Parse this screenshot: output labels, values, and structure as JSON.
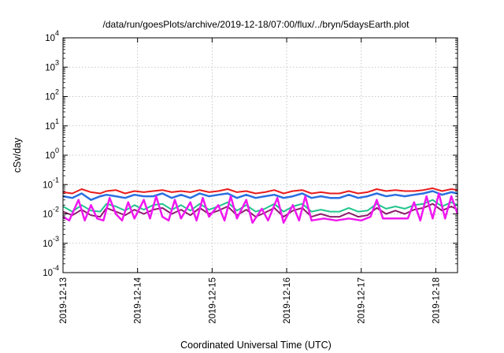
{
  "chart_data": {
    "type": "line",
    "title": "/data/run/goesPlots/archive/2019-12-18/07:00/flux/../bryn/5daysEarth.plot",
    "xlabel": "Coordinated Universal Time (UTC)",
    "ylabel": "cSv/day",
    "y_scale": "log",
    "ylim": [
      0.0001,
      10000
    ],
    "xlim": [
      "2019-12-13T00:00",
      "2019-12-18T07:00"
    ],
    "grid": true,
    "legend": "none",
    "x_tick_labels": [
      "2019-12-13",
      "2019-12-14",
      "2019-12-15",
      "2019-12-16",
      "2019-12-17",
      "2019-12-18"
    ],
    "y_ticks": [
      {
        "base": "10",
        "exp": "-4"
      },
      {
        "base": "10",
        "exp": "-3"
      },
      {
        "base": "10",
        "exp": "-2"
      },
      {
        "base": "10",
        "exp": "-1"
      },
      {
        "base": "10",
        "exp": "0"
      },
      {
        "base": "10",
        "exp": "1"
      },
      {
        "base": "10",
        "exp": "2"
      },
      {
        "base": "10",
        "exp": "3"
      },
      {
        "base": "10",
        "exp": "4"
      }
    ],
    "series": [
      {
        "color": "#e81c1c",
        "width": 2,
        "points": [
          [
            "2019-12-13T00:00",
            0.055
          ],
          [
            "2019-12-13T03:00",
            0.05
          ],
          [
            "2019-12-13T06:00",
            0.07
          ],
          [
            "2019-12-13T09:00",
            0.055
          ],
          [
            "2019-12-13T12:00",
            0.05
          ],
          [
            "2019-12-13T14:00",
            0.06
          ],
          [
            "2019-12-13T17:00",
            0.065
          ],
          [
            "2019-12-13T20:00",
            0.05
          ],
          [
            "2019-12-13T23:00",
            0.06
          ],
          [
            "2019-12-14T02:00",
            0.055
          ],
          [
            "2019-12-14T05:00",
            0.06
          ],
          [
            "2019-12-14T08:00",
            0.065
          ],
          [
            "2019-12-14T11:00",
            0.055
          ],
          [
            "2019-12-14T14:00",
            0.06
          ],
          [
            "2019-12-14T17:00",
            0.055
          ],
          [
            "2019-12-14T20:00",
            0.065
          ],
          [
            "2019-12-14T23:00",
            0.055
          ],
          [
            "2019-12-15T02:00",
            0.06
          ],
          [
            "2019-12-15T05:00",
            0.07
          ],
          [
            "2019-12-15T08:00",
            0.055
          ],
          [
            "2019-12-15T11:00",
            0.06
          ],
          [
            "2019-12-15T14:00",
            0.05
          ],
          [
            "2019-12-15T17:00",
            0.055
          ],
          [
            "2019-12-15T20:00",
            0.065
          ],
          [
            "2019-12-15T23:00",
            0.05
          ],
          [
            "2019-12-16T02:00",
            0.06
          ],
          [
            "2019-12-16T05:00",
            0.065
          ],
          [
            "2019-12-16T08:00",
            0.05
          ],
          [
            "2019-12-16T11:00",
            0.055
          ],
          [
            "2019-12-16T14:00",
            0.05
          ],
          [
            "2019-12-16T17:00",
            0.05
          ],
          [
            "2019-12-16T20:00",
            0.06
          ],
          [
            "2019-12-16T23:00",
            0.05
          ],
          [
            "2019-12-17T02:00",
            0.055
          ],
          [
            "2019-12-17T05:00",
            0.07
          ],
          [
            "2019-12-17T08:00",
            0.06
          ],
          [
            "2019-12-17T11:00",
            0.065
          ],
          [
            "2019-12-17T14:00",
            0.06
          ],
          [
            "2019-12-17T17:00",
            0.06
          ],
          [
            "2019-12-17T20:00",
            0.065
          ],
          [
            "2019-12-17T23:00",
            0.075
          ],
          [
            "2019-12-18T02:00",
            0.06
          ],
          [
            "2019-12-18T05:00",
            0.07
          ],
          [
            "2019-12-18T07:00",
            0.065
          ]
        ]
      },
      {
        "color": "#2a6fe0",
        "width": 2.5,
        "points": [
          [
            "2019-12-13T00:00",
            0.04
          ],
          [
            "2019-12-13T03:00",
            0.035
          ],
          [
            "2019-12-13T06:00",
            0.05
          ],
          [
            "2019-12-13T09:00",
            0.03
          ],
          [
            "2019-12-13T12:00",
            0.04
          ],
          [
            "2019-12-13T14:00",
            0.045
          ],
          [
            "2019-12-13T17:00",
            0.04
          ],
          [
            "2019-12-13T20:00",
            0.035
          ],
          [
            "2019-12-13T23:00",
            0.045
          ],
          [
            "2019-12-14T02:00",
            0.04
          ],
          [
            "2019-12-14T05:00",
            0.04
          ],
          [
            "2019-12-14T08:00",
            0.05
          ],
          [
            "2019-12-14T11:00",
            0.035
          ],
          [
            "2019-12-14T14:00",
            0.045
          ],
          [
            "2019-12-14T17:00",
            0.035
          ],
          [
            "2019-12-14T20:00",
            0.05
          ],
          [
            "2019-12-14T23:00",
            0.04
          ],
          [
            "2019-12-15T02:00",
            0.045
          ],
          [
            "2019-12-15T05:00",
            0.05
          ],
          [
            "2019-12-15T08:00",
            0.035
          ],
          [
            "2019-12-15T11:00",
            0.045
          ],
          [
            "2019-12-15T14:00",
            0.035
          ],
          [
            "2019-12-15T17:00",
            0.04
          ],
          [
            "2019-12-15T20:00",
            0.045
          ],
          [
            "2019-12-15T23:00",
            0.035
          ],
          [
            "2019-12-16T02:00",
            0.04
          ],
          [
            "2019-12-16T05:00",
            0.05
          ],
          [
            "2019-12-16T08:00",
            0.035
          ],
          [
            "2019-12-16T11:00",
            0.04
          ],
          [
            "2019-12-16T14:00",
            0.035
          ],
          [
            "2019-12-16T17:00",
            0.035
          ],
          [
            "2019-12-16T20:00",
            0.045
          ],
          [
            "2019-12-16T23:00",
            0.035
          ],
          [
            "2019-12-17T02:00",
            0.04
          ],
          [
            "2019-12-17T05:00",
            0.05
          ],
          [
            "2019-12-17T08:00",
            0.04
          ],
          [
            "2019-12-17T11:00",
            0.045
          ],
          [
            "2019-12-17T14:00",
            0.04
          ],
          [
            "2019-12-17T17:00",
            0.045
          ],
          [
            "2019-12-17T20:00",
            0.05
          ],
          [
            "2019-12-17T23:00",
            0.06
          ],
          [
            "2019-12-18T02:00",
            0.045
          ],
          [
            "2019-12-18T05:00",
            0.055
          ],
          [
            "2019-12-18T07:00",
            0.05
          ]
        ]
      },
      {
        "color": "#22c48c",
        "width": 2,
        "points": [
          [
            "2019-12-13T00:00",
            0.018
          ],
          [
            "2019-12-13T03:00",
            0.012
          ],
          [
            "2019-12-13T06:00",
            0.02
          ],
          [
            "2019-12-13T09:00",
            0.013
          ],
          [
            "2019-12-13T12:00",
            0.012
          ],
          [
            "2019-12-13T14:00",
            0.022
          ],
          [
            "2019-12-13T17:00",
            0.018
          ],
          [
            "2019-12-13T20:00",
            0.013
          ],
          [
            "2019-12-13T23:00",
            0.02
          ],
          [
            "2019-12-14T02:00",
            0.014
          ],
          [
            "2019-12-14T05:00",
            0.02
          ],
          [
            "2019-12-14T08:00",
            0.022
          ],
          [
            "2019-12-14T11:00",
            0.014
          ],
          [
            "2019-12-14T14:00",
            0.02
          ],
          [
            "2019-12-14T17:00",
            0.013
          ],
          [
            "2019-12-14T20:00",
            0.022
          ],
          [
            "2019-12-14T23:00",
            0.014
          ],
          [
            "2019-12-15T02:00",
            0.018
          ],
          [
            "2019-12-15T05:00",
            0.025
          ],
          [
            "2019-12-15T08:00",
            0.013
          ],
          [
            "2019-12-15T11:00",
            0.02
          ],
          [
            "2019-12-15T14:00",
            0.012
          ],
          [
            "2019-12-15T17:00",
            0.015
          ],
          [
            "2019-12-15T20:00",
            0.022
          ],
          [
            "2019-12-15T23:00",
            0.012
          ],
          [
            "2019-12-16T02:00",
            0.018
          ],
          [
            "2019-12-16T05:00",
            0.022
          ],
          [
            "2019-12-16T08:00",
            0.012
          ],
          [
            "2019-12-16T11:00",
            0.014
          ],
          [
            "2019-12-16T14:00",
            0.012
          ],
          [
            "2019-12-16T17:00",
            0.012
          ],
          [
            "2019-12-16T20:00",
            0.016
          ],
          [
            "2019-12-16T23:00",
            0.012
          ],
          [
            "2019-12-17T02:00",
            0.013
          ],
          [
            "2019-12-17T05:00",
            0.022
          ],
          [
            "2019-12-17T08:00",
            0.015
          ],
          [
            "2019-12-17T11:00",
            0.018
          ],
          [
            "2019-12-17T14:00",
            0.015
          ],
          [
            "2019-12-17T17:00",
            0.02
          ],
          [
            "2019-12-17T20:00",
            0.022
          ],
          [
            "2019-12-17T23:00",
            0.03
          ],
          [
            "2019-12-18T02:00",
            0.018
          ],
          [
            "2019-12-18T05:00",
            0.025
          ],
          [
            "2019-12-18T07:00",
            0.02
          ]
        ]
      },
      {
        "color": "#8b1d6e",
        "width": 2,
        "points": [
          [
            "2019-12-13T00:00",
            0.012
          ],
          [
            "2019-12-13T03:00",
            0.009
          ],
          [
            "2019-12-13T06:00",
            0.014
          ],
          [
            "2019-12-13T09:00",
            0.009
          ],
          [
            "2019-12-13T12:00",
            0.008
          ],
          [
            "2019-12-13T14:00",
            0.016
          ],
          [
            "2019-12-13T17:00",
            0.012
          ],
          [
            "2019-12-13T20:00",
            0.009
          ],
          [
            "2019-12-13T23:00",
            0.014
          ],
          [
            "2019-12-14T02:00",
            0.01
          ],
          [
            "2019-12-14T05:00",
            0.014
          ],
          [
            "2019-12-14T08:00",
            0.016
          ],
          [
            "2019-12-14T11:00",
            0.01
          ],
          [
            "2019-12-14T14:00",
            0.014
          ],
          [
            "2019-12-14T17:00",
            0.009
          ],
          [
            "2019-12-14T20:00",
            0.016
          ],
          [
            "2019-12-14T23:00",
            0.01
          ],
          [
            "2019-12-15T02:00",
            0.013
          ],
          [
            "2019-12-15T05:00",
            0.018
          ],
          [
            "2019-12-15T08:00",
            0.009
          ],
          [
            "2019-12-15T11:00",
            0.014
          ],
          [
            "2019-12-15T14:00",
            0.008
          ],
          [
            "2019-12-15T17:00",
            0.011
          ],
          [
            "2019-12-15T20:00",
            0.016
          ],
          [
            "2019-12-15T23:00",
            0.008
          ],
          [
            "2019-12-16T02:00",
            0.013
          ],
          [
            "2019-12-16T05:00",
            0.016
          ],
          [
            "2019-12-16T08:00",
            0.008
          ],
          [
            "2019-12-16T11:00",
            0.01
          ],
          [
            "2019-12-16T14:00",
            0.008
          ],
          [
            "2019-12-16T17:00",
            0.008
          ],
          [
            "2019-12-16T20:00",
            0.011
          ],
          [
            "2019-12-16T23:00",
            0.008
          ],
          [
            "2019-12-17T02:00",
            0.009
          ],
          [
            "2019-12-17T05:00",
            0.016
          ],
          [
            "2019-12-17T08:00",
            0.01
          ],
          [
            "2019-12-17T11:00",
            0.013
          ],
          [
            "2019-12-17T14:00",
            0.01
          ],
          [
            "2019-12-17T17:00",
            0.014
          ],
          [
            "2019-12-17T20:00",
            0.016
          ],
          [
            "2019-12-17T23:00",
            0.022
          ],
          [
            "2019-12-18T02:00",
            0.013
          ],
          [
            "2019-12-18T05:00",
            0.018
          ],
          [
            "2019-12-18T07:00",
            0.014
          ]
        ]
      },
      {
        "color": "#f018f0",
        "width": 2.5,
        "points": [
          [
            "2019-12-13T00:00",
            0.008
          ],
          [
            "2019-12-13T02:00",
            0.006
          ],
          [
            "2019-12-13T05:00",
            0.03
          ],
          [
            "2019-12-13T07:00",
            0.006
          ],
          [
            "2019-12-13T09:00",
            0.02
          ],
          [
            "2019-12-13T11:00",
            0.007
          ],
          [
            "2019-12-13T13:00",
            0.006
          ],
          [
            "2019-12-13T15:00",
            0.035
          ],
          [
            "2019-12-13T17:00",
            0.01
          ],
          [
            "2019-12-13T19:00",
            0.006
          ],
          [
            "2019-12-13T21:00",
            0.025
          ],
          [
            "2019-12-13T23:00",
            0.007
          ],
          [
            "2019-12-14T02:00",
            0.03
          ],
          [
            "2019-12-14T04:00",
            0.007
          ],
          [
            "2019-12-14T06:00",
            0.04
          ],
          [
            "2019-12-14T08:00",
            0.008
          ],
          [
            "2019-12-14T10:00",
            0.006
          ],
          [
            "2019-12-14T12:00",
            0.03
          ],
          [
            "2019-12-14T14:00",
            0.007
          ],
          [
            "2019-12-14T17:00",
            0.025
          ],
          [
            "2019-12-14T19:00",
            0.006
          ],
          [
            "2019-12-14T21:00",
            0.035
          ],
          [
            "2019-12-14T23:00",
            0.008
          ],
          [
            "2019-12-15T02:00",
            0.02
          ],
          [
            "2019-12-15T04:00",
            0.006
          ],
          [
            "2019-12-15T06:00",
            0.04
          ],
          [
            "2019-12-15T08:00",
            0.007
          ],
          [
            "2019-12-15T11:00",
            0.03
          ],
          [
            "2019-12-15T13:00",
            0.005
          ],
          [
            "2019-12-15T16:00",
            0.015
          ],
          [
            "2019-12-15T18:00",
            0.006
          ],
          [
            "2019-12-15T21:00",
            0.035
          ],
          [
            "2019-12-15T23:00",
            0.005
          ],
          [
            "2019-12-16T02:00",
            0.02
          ],
          [
            "2019-12-16T04:00",
            0.006
          ],
          [
            "2019-12-16T06:00",
            0.04
          ],
          [
            "2019-12-16T08:00",
            0.006
          ],
          [
            "2019-12-16T12:00",
            0.007
          ],
          [
            "2019-12-16T16:00",
            0.006
          ],
          [
            "2019-12-16T20:00",
            0.007
          ],
          [
            "2019-12-17T00:00",
            0.006
          ],
          [
            "2019-12-17T03:00",
            0.008
          ],
          [
            "2019-12-17T05:00",
            0.03
          ],
          [
            "2019-12-17T07:00",
            0.007
          ],
          [
            "2019-12-17T11:00",
            0.007
          ],
          [
            "2019-12-17T15:00",
            0.007
          ],
          [
            "2019-12-17T17:00",
            0.025
          ],
          [
            "2019-12-17T19:00",
            0.006
          ],
          [
            "2019-12-17T21:00",
            0.04
          ],
          [
            "2019-12-17T23:00",
            0.007
          ],
          [
            "2019-12-18T01:00",
            0.05
          ],
          [
            "2019-12-18T03:00",
            0.007
          ],
          [
            "2019-12-18T05:00",
            0.04
          ],
          [
            "2019-12-18T07:00",
            0.01
          ]
        ]
      }
    ]
  }
}
